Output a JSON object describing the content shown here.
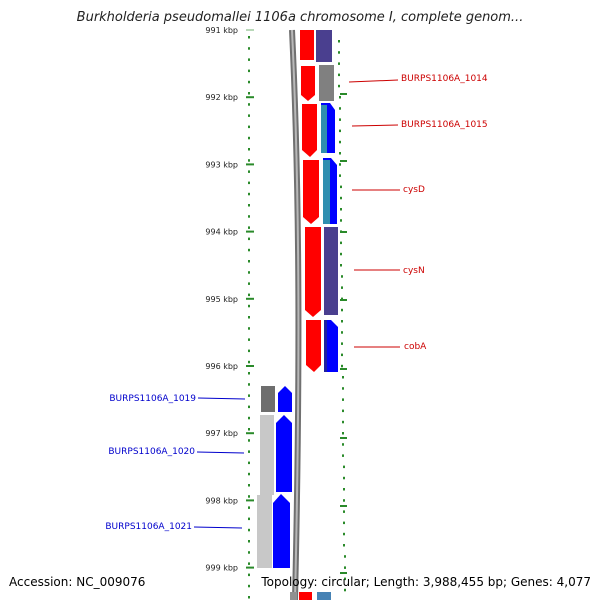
{
  "title": "Burkholderia pseudomallei 1106a chromosome I, complete genom...",
  "footer": {
    "accession": "Accession: NC_009076",
    "topology": "Topology: circular; Length: 3,988,455 bp; Genes: 4,077"
  },
  "axis": {
    "ticks": [
      {
        "label": "991 kbp"
      },
      {
        "label": "992 kbp"
      },
      {
        "label": "993 kbp"
      },
      {
        "label": "994 kbp"
      },
      {
        "label": "995 kbp"
      },
      {
        "label": "996 kbp"
      },
      {
        "label": "997 kbp"
      },
      {
        "label": "998 kbp"
      },
      {
        "label": "999 kbp"
      }
    ]
  },
  "colors": {
    "forward_label": "#cc0000",
    "reverse_label": "#0000cc",
    "red": "#ff0000",
    "blue": "#0000ff",
    "gray": "#808080",
    "purple": "#4a3f8f",
    "light_gray": "#c8c8c8",
    "tick_green": "#2a8a2a"
  },
  "genes_right": [
    {
      "label": "BURPS1106A_1014"
    },
    {
      "label": "BURPS1106A_1015"
    },
    {
      "label": "cysD"
    },
    {
      "label": "cysN"
    },
    {
      "label": "cobA"
    }
  ],
  "genes_left": [
    {
      "label": "BURPS1106A_1019"
    },
    {
      "label": "BURPS1106A_1020"
    },
    {
      "label": "BURPS1106A_1021"
    }
  ]
}
